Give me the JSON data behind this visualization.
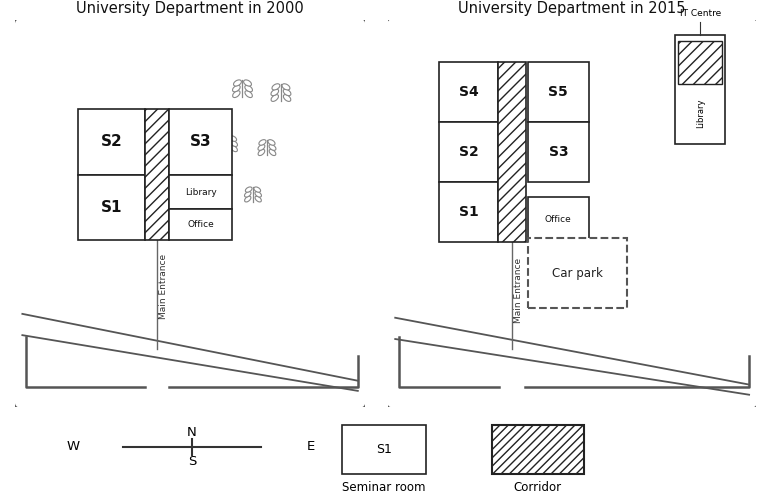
{
  "title_2000": "University Department in 2000",
  "title_2015": "University Department in 2015",
  "legend_seminar": "Seminar room",
  "legend_corridor": "Corridor"
}
